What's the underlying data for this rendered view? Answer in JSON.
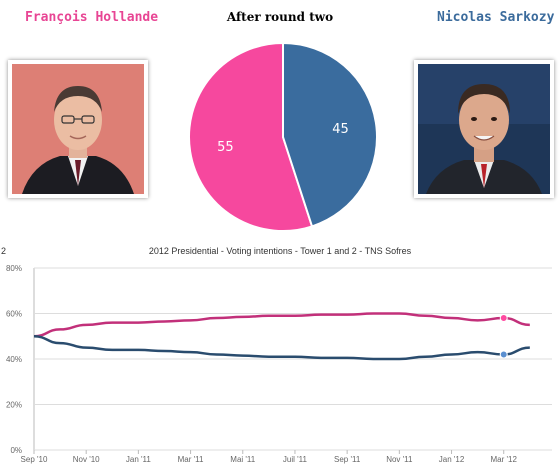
{
  "candidates": {
    "left": {
      "name": "François Hollande",
      "color": "#e84594"
    },
    "right": {
      "name": "Nicolas Sarkozy",
      "color": "#3b6b9c"
    }
  },
  "chart_data": [
    {
      "type": "pie",
      "title": "After round two",
      "slices": [
        {
          "label": "55",
          "value": 55,
          "color": "#f6489e"
        },
        {
          "label": "45",
          "value": 45,
          "color": "#3a6c9e"
        }
      ]
    },
    {
      "type": "line",
      "title": "2012 Presidential - Voting intentions - Tower 1 and 2 - TNS Sofres",
      "edge_label": "2",
      "x": [
        "Sep '10",
        "Oct '10",
        "Nov '10",
        "Dec '10",
        "Jan '11",
        "Feb '11",
        "Mar '11",
        "Apr '11",
        "May '11",
        "Jun '11",
        "Jul '11",
        "Aug '11",
        "Sep '11",
        "Oct '11",
        "Nov '11",
        "Dec '11",
        "Jan '12",
        "Feb '12",
        "Mar '12",
        "Apr '12"
      ],
      "xticks": [
        "Sep '10",
        "Nov '10",
        "Jan '11",
        "Mar '11",
        "Mai '11",
        "Juil '11",
        "Sep '11",
        "Nov '11",
        "Jan '12",
        "Mar '12"
      ],
      "yticks": [
        "0%",
        "20%",
        "40%",
        "60%",
        "80%"
      ],
      "ylim": [
        0,
        80
      ],
      "grid": true,
      "series": [
        {
          "color": "#c2307a",
          "values": [
            50,
            53,
            55,
            56,
            56,
            56.5,
            57,
            58,
            58.5,
            59,
            59,
            59.5,
            59.5,
            60,
            60,
            59,
            58,
            57,
            58,
            55
          ]
        },
        {
          "color": "#2a4c6e",
          "values": [
            50,
            47,
            45,
            44,
            44,
            43.5,
            43,
            42,
            41.5,
            41,
            41,
            40.5,
            40.5,
            40,
            40,
            41,
            42,
            43,
            42,
            45
          ]
        }
      ],
      "highlight": {
        "index": 18,
        "series_colors": [
          "#ff4aa0",
          "#5a8fd0"
        ]
      }
    }
  ]
}
